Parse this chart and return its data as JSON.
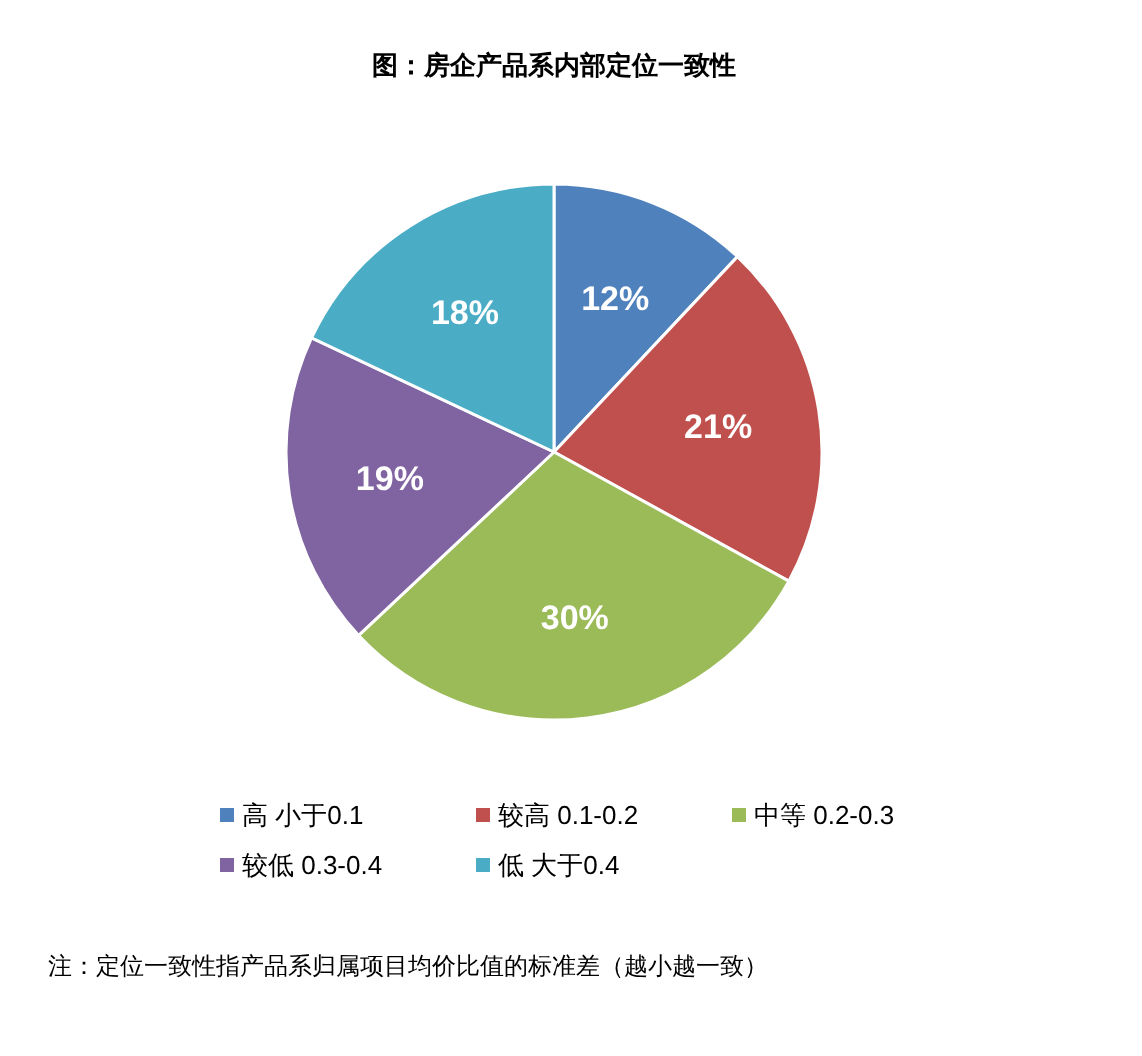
{
  "chart_data": {
    "type": "pie",
    "title": "图：房企产品系内部定位一致性",
    "categories": [
      "高 小于0.1",
      "较高 0.1-0.2",
      "中等 0.2-0.3",
      "较低 0.3-0.4",
      "低 大于0.4"
    ],
    "values": [
      12,
      21,
      30,
      19,
      18
    ],
    "colors": [
      "#4f81bd",
      "#c0504d",
      "#9bbb59",
      "#8064a2",
      "#4bacc6"
    ],
    "value_labels": [
      "12%",
      "21%",
      "30%",
      "19%",
      "18%"
    ],
    "legend": "bottom",
    "annotations": [
      "注：定位一致性指产品系归属项目均价比值的标准差（越小越一致）"
    ]
  }
}
